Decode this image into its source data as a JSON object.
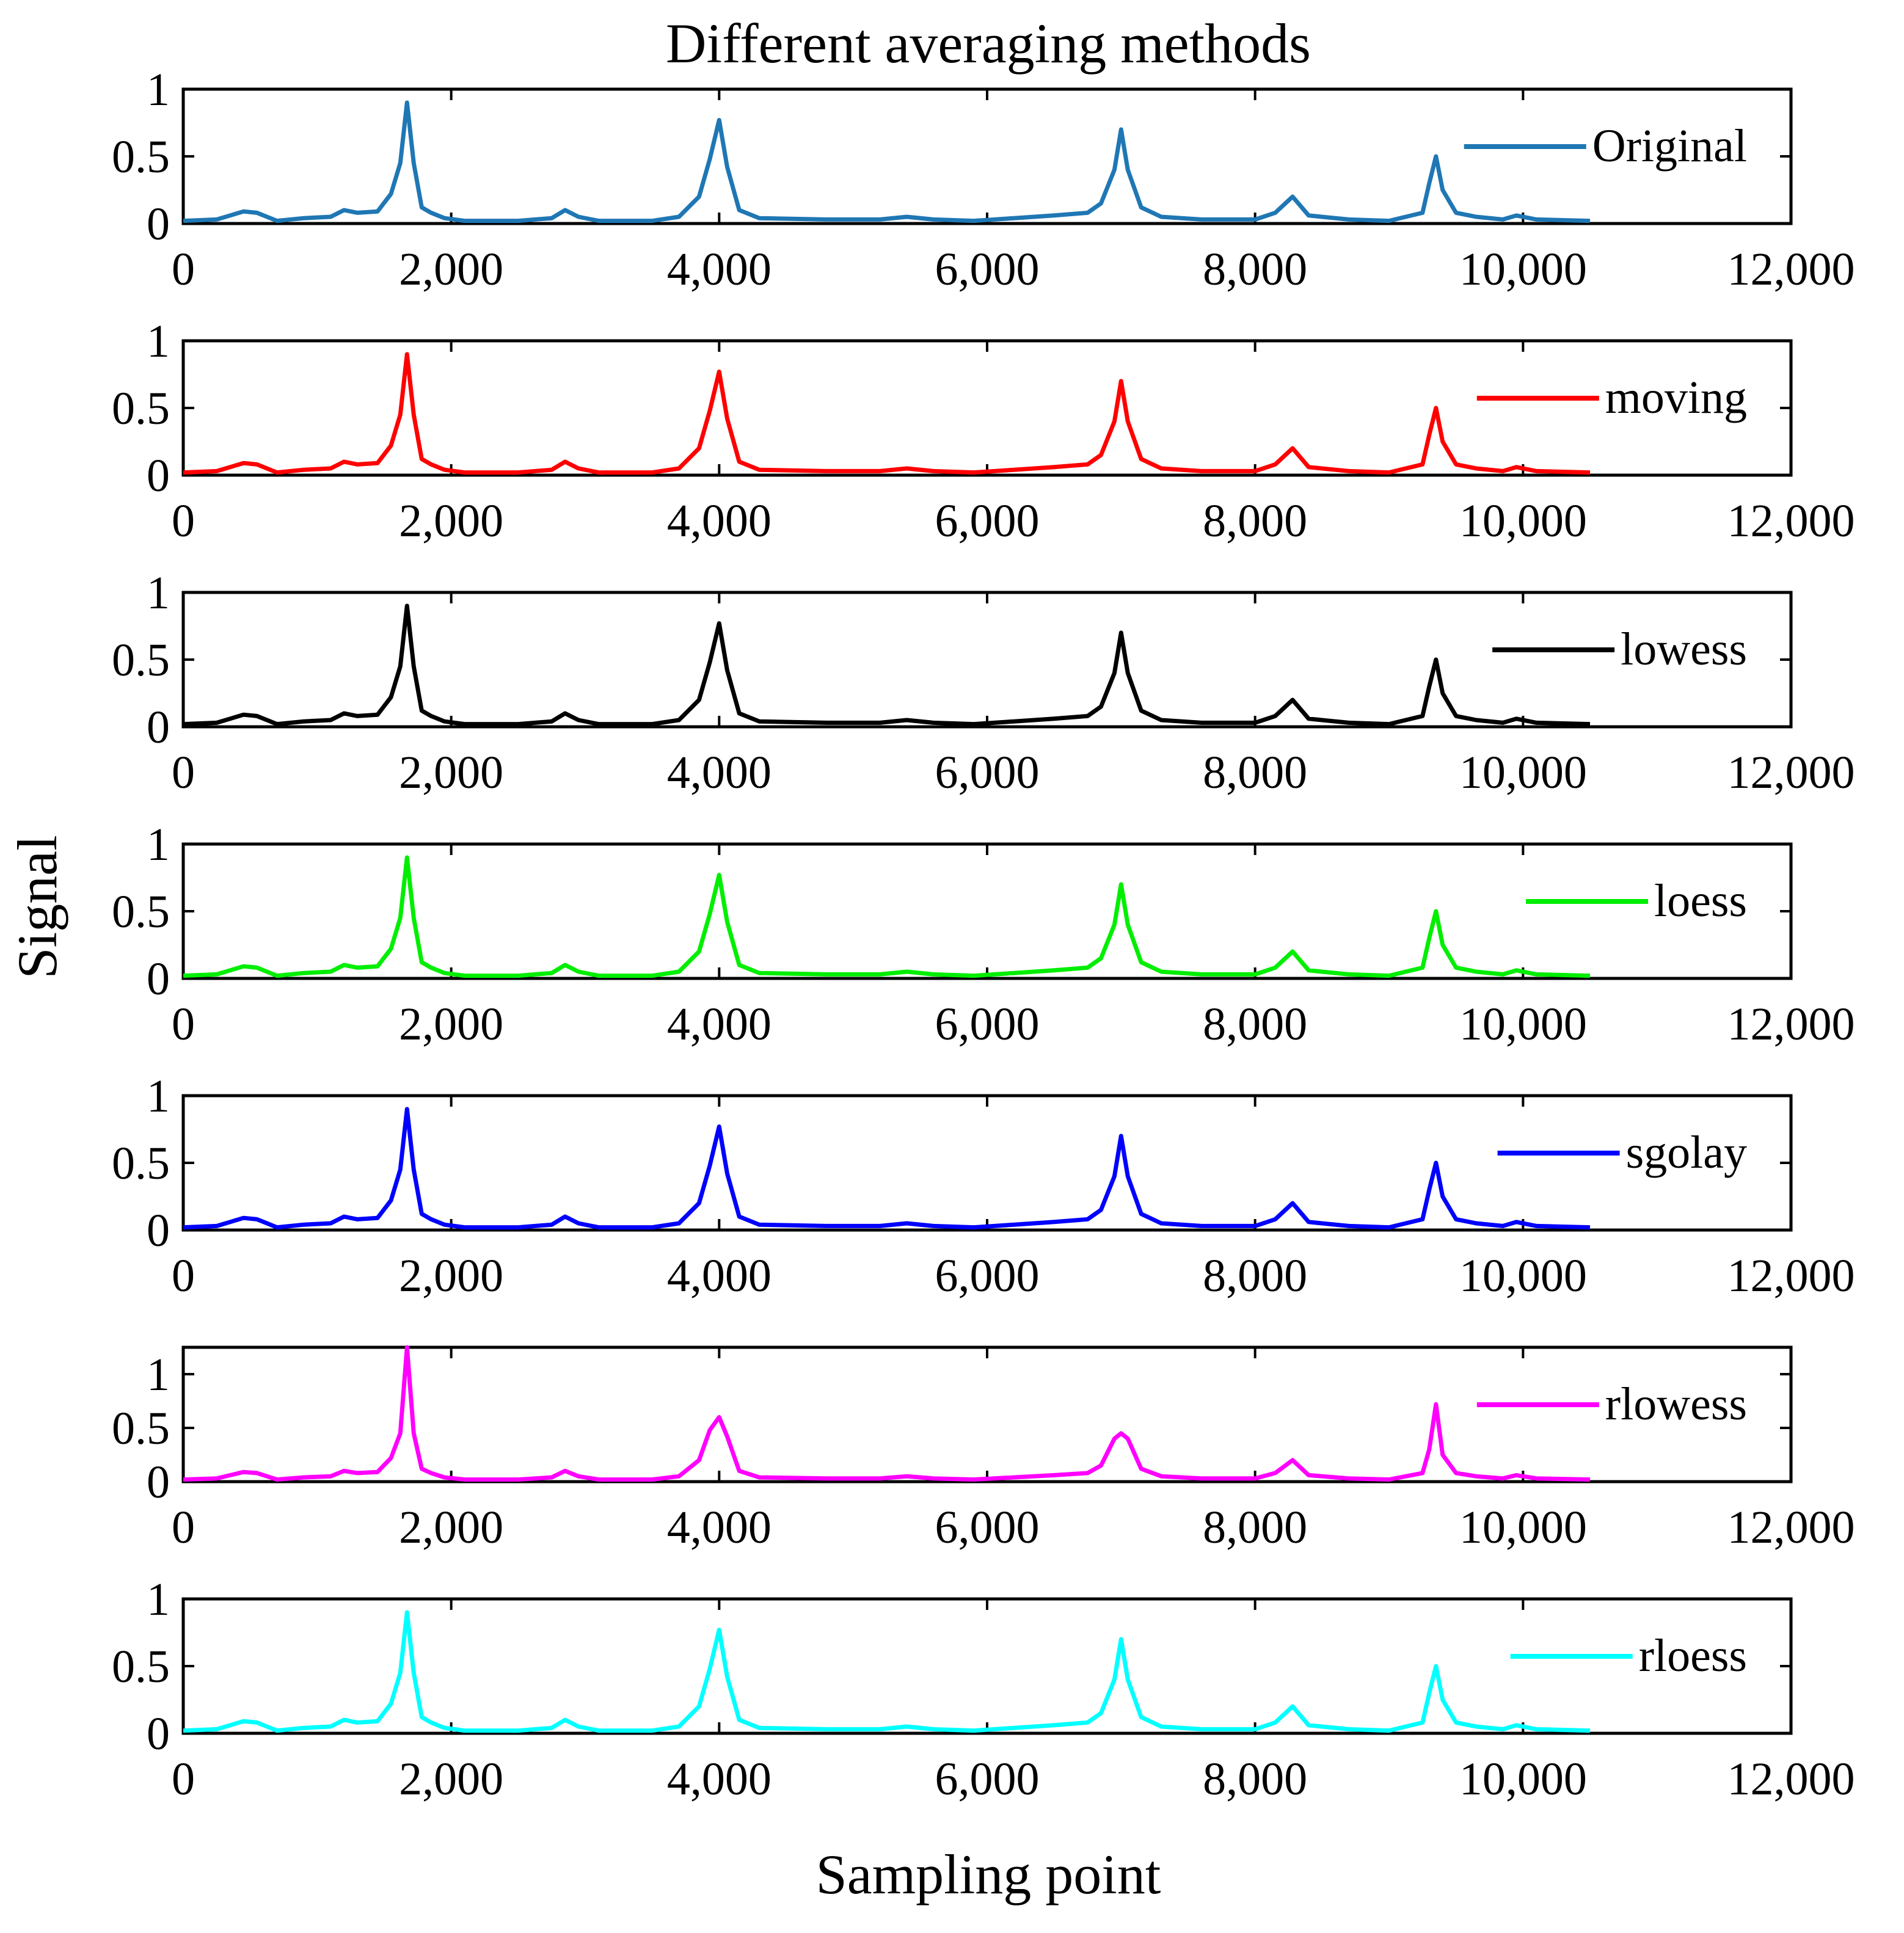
{
  "chart_data": {
    "type": "line",
    "title": "Different averaging methods",
    "xlabel": "Sampling point",
    "ylabel": "Signal",
    "xlim": [
      0,
      12000
    ],
    "xticks": [
      0,
      2000,
      4000,
      6000,
      8000,
      10000,
      12000
    ],
    "xtick_labels": [
      "0",
      "2,000",
      "4,000",
      "6,000",
      "8,000",
      "10,000",
      "12,000"
    ],
    "grid": false,
    "legend_position": "top-right (inside each panel)",
    "baseline": {
      "x": [
        0,
        250,
        450,
        550,
        700,
        900,
        1100,
        1200,
        1300,
        1450,
        1550,
        1620,
        1670,
        1720,
        1780,
        1850,
        1950,
        2100,
        2500,
        2750,
        2850,
        2950,
        3100,
        3500,
        3700,
        3850,
        3930,
        4000,
        4060,
        4150,
        4300,
        4800,
        5200,
        5400,
        5600,
        5900,
        6200,
        6500,
        6750,
        6850,
        6950,
        7000,
        7050,
        7150,
        7300,
        7600,
        8000,
        8150,
        8280,
        8400,
        8700,
        9000,
        9250,
        9300,
        9350,
        9400,
        9500,
        9650,
        9850,
        9950,
        10100,
        10500
      ],
      "values": [
        0.02,
        0.03,
        0.09,
        0.08,
        0.02,
        0.04,
        0.05,
        0.1,
        0.08,
        0.09,
        0.22,
        0.45,
        0.9,
        0.45,
        0.12,
        0.08,
        0.04,
        0.02,
        0.02,
        0.04,
        0.1,
        0.05,
        0.02,
        0.02,
        0.05,
        0.2,
        0.48,
        0.77,
        0.42,
        0.1,
        0.04,
        0.03,
        0.03,
        0.05,
        0.03,
        0.02,
        0.04,
        0.06,
        0.08,
        0.15,
        0.4,
        0.7,
        0.4,
        0.12,
        0.05,
        0.03,
        0.03,
        0.08,
        0.2,
        0.06,
        0.03,
        0.02,
        0.08,
        0.3,
        0.5,
        0.25,
        0.08,
        0.05,
        0.03,
        0.06,
        0.03,
        0.02
      ]
    },
    "series": [
      {
        "name": "Original",
        "color": "#1f77b4",
        "ylim": [
          0,
          1
        ],
        "yticks": [
          0,
          0.5,
          1
        ],
        "ytick_labels": [
          "0",
          "0.5",
          "1"
        ],
        "scale": 1.0
      },
      {
        "name": "moving",
        "color": "#ff0000",
        "ylim": [
          0,
          1
        ],
        "yticks": [
          0,
          0.5,
          1
        ],
        "ytick_labels": [
          "0",
          "0.5",
          "1"
        ],
        "scale": 1.0
      },
      {
        "name": "lowess",
        "color": "#000000",
        "ylim": [
          0,
          1
        ],
        "yticks": [
          0,
          0.5,
          1
        ],
        "ytick_labels": [
          "0",
          "0.5",
          "1"
        ],
        "scale": 1.0
      },
      {
        "name": "loess",
        "color": "#00ee00",
        "ylim": [
          0,
          1
        ],
        "yticks": [
          0,
          0.5,
          1
        ],
        "ytick_labels": [
          "0",
          "0.5",
          "1"
        ],
        "scale": 1.0
      },
      {
        "name": "sgolay",
        "color": "#0000ff",
        "ylim": [
          0,
          1
        ],
        "yticks": [
          0,
          0.5,
          1
        ],
        "ytick_labels": [
          "0",
          "0.5",
          "1"
        ],
        "scale": 1.0
      },
      {
        "name": "rlowess",
        "color": "#ff00ff",
        "ylim": [
          0,
          1.25
        ],
        "yticks": [
          0,
          0.5,
          1
        ],
        "ytick_labels": [
          "0",
          "0.5",
          "1"
        ],
        "scale": 1.0,
        "peaks": {
          "1670": 1.25,
          "4000": 0.6,
          "7000": 0.45,
          "9350": 0.72
        }
      },
      {
        "name": "rloess",
        "color": "#00ffff",
        "ylim": [
          0,
          1
        ],
        "yticks": [
          0,
          0.5,
          1
        ],
        "ytick_labels": [
          "0",
          "0.5",
          "1"
        ],
        "scale": 1.0
      }
    ]
  }
}
